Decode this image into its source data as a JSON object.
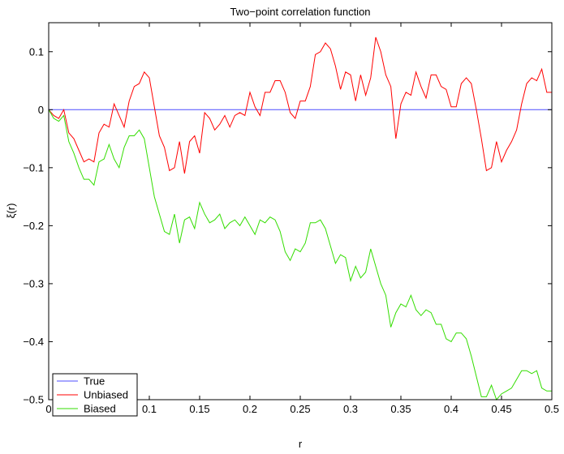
{
  "chart_data": {
    "type": "line",
    "title": "Two−point correlation function",
    "xlabel": "r",
    "ylabel": "ξ(r)",
    "xlim": [
      0,
      0.5
    ],
    "ylim": [
      -0.5,
      0.15
    ],
    "xticks": [
      0,
      0.05,
      0.1,
      0.15,
      0.2,
      0.25,
      0.3,
      0.35,
      0.4,
      0.45,
      0.5
    ],
    "xtick_labels": [
      "0",
      "0.05",
      "0.1",
      "0.15",
      "0.2",
      "0.25",
      "0.3",
      "0.35",
      "0.4",
      "0.45",
      "0.5"
    ],
    "yticks": [
      0.1,
      0,
      -0.1,
      -0.2,
      -0.3,
      -0.4,
      -0.5
    ],
    "ytick_labels": [
      "0.1",
      "0",
      "−0.1",
      "−0.2",
      "−0.3",
      "−0.4",
      "−0.5"
    ],
    "grid": false,
    "legend_position": "bottom-left",
    "series": [
      {
        "name": "True",
        "color": "#4d4dff",
        "x": [
          0,
          0.5
        ],
        "y": [
          0,
          0
        ]
      },
      {
        "name": "Unbiased",
        "color": "#ff0000",
        "x": [
          0,
          0.005,
          0.01,
          0.015,
          0.02,
          0.025,
          0.03,
          0.035,
          0.04,
          0.045,
          0.05,
          0.055,
          0.06,
          0.065,
          0.07,
          0.075,
          0.08,
          0.085,
          0.09,
          0.095,
          0.1,
          0.105,
          0.11,
          0.115,
          0.12,
          0.125,
          0.13,
          0.135,
          0.14,
          0.145,
          0.15,
          0.155,
          0.16,
          0.165,
          0.17,
          0.175,
          0.18,
          0.185,
          0.19,
          0.195,
          0.2,
          0.205,
          0.21,
          0.215,
          0.22,
          0.225,
          0.23,
          0.235,
          0.24,
          0.245,
          0.25,
          0.255,
          0.26,
          0.265,
          0.27,
          0.275,
          0.28,
          0.285,
          0.29,
          0.295,
          0.3,
          0.305,
          0.31,
          0.315,
          0.32,
          0.325,
          0.33,
          0.335,
          0.34,
          0.345,
          0.35,
          0.355,
          0.36,
          0.365,
          0.37,
          0.375,
          0.38,
          0.385,
          0.39,
          0.395,
          0.4,
          0.405,
          0.41,
          0.415,
          0.42,
          0.425,
          0.43,
          0.435,
          0.44,
          0.445,
          0.45,
          0.455,
          0.46,
          0.465,
          0.47,
          0.475,
          0.48,
          0.485,
          0.49,
          0.495,
          0.5
        ],
        "y": [
          0,
          -0.01,
          -0.015,
          0,
          -0.04,
          -0.05,
          -0.07,
          -0.09,
          -0.085,
          -0.09,
          -0.04,
          -0.025,
          -0.03,
          0.01,
          -0.01,
          -0.03,
          0.015,
          0.04,
          0.045,
          0.065,
          0.055,
          0.005,
          -0.045,
          -0.065,
          -0.105,
          -0.1,
          -0.055,
          -0.11,
          -0.055,
          -0.045,
          -0.075,
          -0.005,
          -0.015,
          -0.035,
          -0.025,
          -0.01,
          -0.03,
          -0.01,
          -0.005,
          -0.01,
          0.03,
          0.005,
          -0.01,
          0.03,
          0.03,
          0.05,
          0.05,
          0.03,
          -0.005,
          -0.015,
          0.015,
          0.015,
          0.04,
          0.095,
          0.1,
          0.115,
          0.105,
          0.075,
          0.035,
          0.065,
          0.06,
          0.015,
          0.06,
          0.025,
          0.055,
          0.125,
          0.1,
          0.06,
          0.04,
          -0.05,
          0.01,
          0.03,
          0.025,
          0.065,
          0.04,
          0.02,
          0.06,
          0.06,
          0.04,
          0.035,
          0.005,
          0.005,
          0.045,
          0.055,
          0.045,
          0.0,
          -0.05,
          -0.105,
          -0.1,
          -0.055,
          -0.09,
          -0.07,
          -0.055,
          -0.035,
          0.01,
          0.045,
          0.055,
          0.05,
          0.07,
          0.03,
          0.03
        ]
      },
      {
        "name": "Biased",
        "color": "#33dd00",
        "x": [
          0,
          0.005,
          0.01,
          0.015,
          0.02,
          0.025,
          0.03,
          0.035,
          0.04,
          0.045,
          0.05,
          0.055,
          0.06,
          0.065,
          0.07,
          0.075,
          0.08,
          0.085,
          0.09,
          0.095,
          0.1,
          0.105,
          0.11,
          0.115,
          0.12,
          0.125,
          0.13,
          0.135,
          0.14,
          0.145,
          0.15,
          0.155,
          0.16,
          0.165,
          0.17,
          0.175,
          0.18,
          0.185,
          0.19,
          0.195,
          0.2,
          0.205,
          0.21,
          0.215,
          0.22,
          0.225,
          0.23,
          0.235,
          0.24,
          0.245,
          0.25,
          0.255,
          0.26,
          0.265,
          0.27,
          0.275,
          0.28,
          0.285,
          0.29,
          0.295,
          0.3,
          0.305,
          0.31,
          0.315,
          0.32,
          0.325,
          0.33,
          0.335,
          0.34,
          0.345,
          0.35,
          0.355,
          0.36,
          0.365,
          0.37,
          0.375,
          0.38,
          0.385,
          0.39,
          0.395,
          0.4,
          0.405,
          0.41,
          0.415,
          0.42,
          0.425,
          0.43,
          0.435,
          0.44,
          0.445,
          0.45,
          0.455,
          0.46,
          0.465,
          0.47,
          0.475,
          0.48,
          0.485,
          0.49,
          0.495,
          0.5
        ],
        "y": [
          0,
          -0.015,
          -0.02,
          -0.01,
          -0.055,
          -0.075,
          -0.1,
          -0.12,
          -0.12,
          -0.13,
          -0.09,
          -0.085,
          -0.06,
          -0.085,
          -0.1,
          -0.065,
          -0.045,
          -0.045,
          -0.035,
          -0.05,
          -0.1,
          -0.15,
          -0.18,
          -0.21,
          -0.215,
          -0.18,
          -0.23,
          -0.19,
          -0.185,
          -0.205,
          -0.16,
          -0.18,
          -0.195,
          -0.19,
          -0.18,
          -0.205,
          -0.195,
          -0.19,
          -0.2,
          -0.185,
          -0.2,
          -0.215,
          -0.19,
          -0.195,
          -0.185,
          -0.19,
          -0.21,
          -0.245,
          -0.26,
          -0.24,
          -0.245,
          -0.23,
          -0.195,
          -0.195,
          -0.19,
          -0.205,
          -0.235,
          -0.265,
          -0.25,
          -0.255,
          -0.295,
          -0.27,
          -0.29,
          -0.28,
          -0.24,
          -0.27,
          -0.3,
          -0.32,
          -0.375,
          -0.35,
          -0.335,
          -0.34,
          -0.32,
          -0.345,
          -0.355,
          -0.345,
          -0.35,
          -0.37,
          -0.37,
          -0.395,
          -0.4,
          -0.385,
          -0.385,
          -0.395,
          -0.425,
          -0.46,
          -0.495,
          -0.495,
          -0.475,
          -0.5,
          -0.49,
          -0.485,
          -0.48,
          -0.465,
          -0.45,
          -0.45,
          -0.455,
          -0.45,
          -0.48,
          -0.485,
          -0.485
        ]
      }
    ]
  }
}
